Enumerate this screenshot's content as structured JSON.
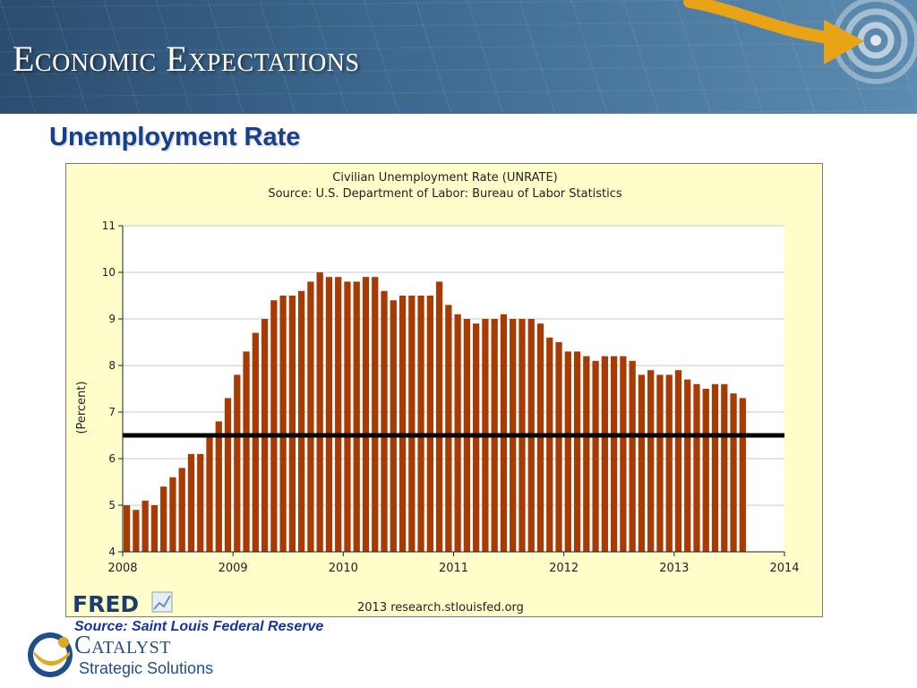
{
  "slide": {
    "title": "Economic Expectations",
    "subtitle": "Unemployment Rate",
    "source_note": "Source:  Saint Louis Federal Reserve"
  },
  "logo": {
    "name": "Catalyst",
    "tagline": "Strategic Solutions",
    "icon": "catalyst-bowl-icon"
  },
  "colors": {
    "bar": "#a83a04",
    "threshold_line": "#000000",
    "chart_background": "#fffdca",
    "title": "#17408c",
    "header": "#3e6a91"
  },
  "chart_data": {
    "type": "bar",
    "title": "Civilian Unemployment Rate (UNRATE)",
    "subtitle": "Source: U.S. Department of Labor: Bureau of Labor Statistics",
    "ylabel": "(Percent)",
    "xlabel": "",
    "ylim": [
      4,
      11
    ],
    "yticks": [
      "4",
      "5",
      "6",
      "7",
      "8",
      "9",
      "10",
      "11"
    ],
    "xlim": [
      "2008-01",
      "2014-01"
    ],
    "xticks": [
      "2008",
      "2009",
      "2010",
      "2011",
      "2012",
      "2013",
      "2014"
    ],
    "grid": true,
    "reference_line": 6.5,
    "footer_brand": "FRED",
    "footer_text": "2013 research.stlouisfed.org",
    "categories": [
      "2008-01",
      "2008-02",
      "2008-03",
      "2008-04",
      "2008-05",
      "2008-06",
      "2008-07",
      "2008-08",
      "2008-09",
      "2008-10",
      "2008-11",
      "2008-12",
      "2009-01",
      "2009-02",
      "2009-03",
      "2009-04",
      "2009-05",
      "2009-06",
      "2009-07",
      "2009-08",
      "2009-09",
      "2009-10",
      "2009-11",
      "2009-12",
      "2010-01",
      "2010-02",
      "2010-03",
      "2010-04",
      "2010-05",
      "2010-06",
      "2010-07",
      "2010-08",
      "2010-09",
      "2010-10",
      "2010-11",
      "2010-12",
      "2011-01",
      "2011-02",
      "2011-03",
      "2011-04",
      "2011-05",
      "2011-06",
      "2011-07",
      "2011-08",
      "2011-09",
      "2011-10",
      "2011-11",
      "2011-12",
      "2012-01",
      "2012-02",
      "2012-03",
      "2012-04",
      "2012-05",
      "2012-06",
      "2012-07",
      "2012-08",
      "2012-09",
      "2012-10",
      "2012-11",
      "2012-12",
      "2013-01",
      "2013-02",
      "2013-03",
      "2013-04",
      "2013-05",
      "2013-06",
      "2013-07",
      "2013-08"
    ],
    "values": [
      5.0,
      4.9,
      5.1,
      5.0,
      5.4,
      5.6,
      5.8,
      6.1,
      6.1,
      6.5,
      6.8,
      7.3,
      7.8,
      8.3,
      8.7,
      9.0,
      9.4,
      9.5,
      9.5,
      9.6,
      9.8,
      10.0,
      9.9,
      9.9,
      9.8,
      9.8,
      9.9,
      9.9,
      9.6,
      9.4,
      9.5,
      9.5,
      9.5,
      9.5,
      9.8,
      9.3,
      9.1,
      9.0,
      8.9,
      9.0,
      9.0,
      9.1,
      9.0,
      9.0,
      9.0,
      8.9,
      8.6,
      8.5,
      8.3,
      8.3,
      8.2,
      8.1,
      8.2,
      8.2,
      8.2,
      8.1,
      7.8,
      7.9,
      7.8,
      7.8,
      7.9,
      7.7,
      7.6,
      7.5,
      7.6,
      7.6,
      7.4,
      7.3
    ]
  }
}
